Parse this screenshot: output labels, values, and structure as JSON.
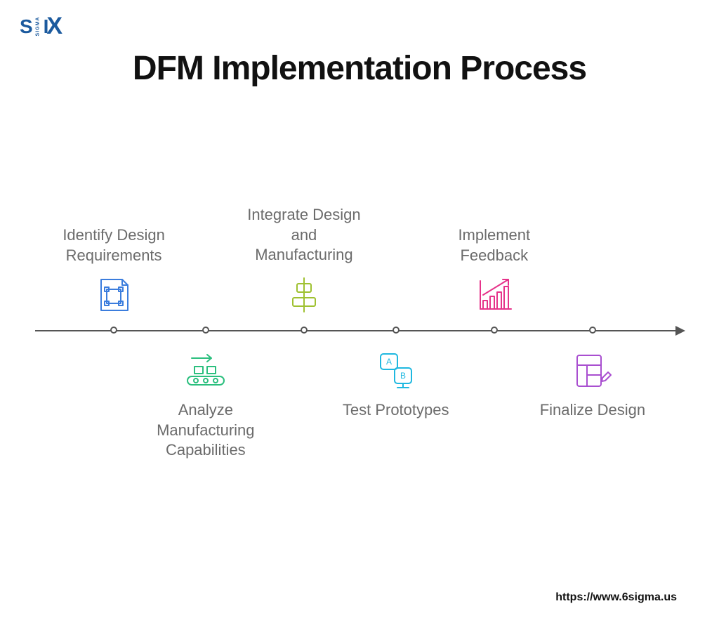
{
  "logo": {
    "text_s": "S",
    "text_i": "I",
    "text_x": "X",
    "text_sigma": "SIGMA",
    "color": "#1b5a9e"
  },
  "title": "DFM Implementation Process",
  "timeline": {
    "line_color": "#555555",
    "background": "#ffffff",
    "node_positions_pct": [
      12,
      26,
      41,
      55,
      70,
      85
    ],
    "steps": [
      {
        "label": "Identify Design Requirements",
        "position": "top",
        "icon": "blueprint",
        "color": "#3b7ddd"
      },
      {
        "label": "Analyze Manufacturing Capabilities",
        "position": "bottom",
        "icon": "conveyor",
        "color": "#2bbf7e"
      },
      {
        "label": "Integrate Design and Manufacturing",
        "position": "top",
        "icon": "align",
        "color": "#9fc131"
      },
      {
        "label": "Test Prototypes",
        "position": "bottom",
        "icon": "ab-test",
        "color": "#1fb8e0"
      },
      {
        "label": "Implement Feedback",
        "position": "top",
        "icon": "growth",
        "color": "#e6338a"
      },
      {
        "label": "Finalize Design",
        "position": "bottom",
        "icon": "design-doc",
        "color": "#a94fd0"
      }
    ]
  },
  "label_fontsize": 22,
  "label_color": "#6b6b6b",
  "title_fontsize": 48,
  "title_color": "#111111",
  "footer_url": "https://www.6sigma.us"
}
